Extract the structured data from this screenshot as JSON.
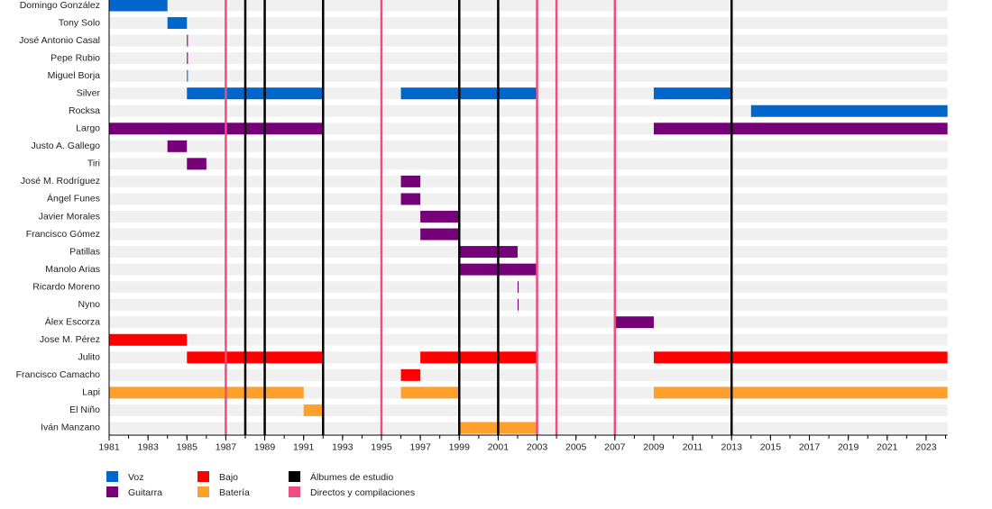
{
  "chart_data": {
    "type": "timeline",
    "title": "",
    "x_range": [
      1981,
      2024.1
    ],
    "x_ticks": [
      1981,
      1983,
      1985,
      1987,
      1989,
      1991,
      1993,
      1995,
      1997,
      1999,
      2001,
      2003,
      2005,
      2007,
      2009,
      2011,
      2013,
      2015,
      2017,
      2019,
      2021,
      2023
    ],
    "roles": {
      "voz": {
        "label": "Voz",
        "color": "#0066cc"
      },
      "guitarra": {
        "label": "Guitarra",
        "color": "#760077"
      },
      "bajo": {
        "label": "Bajo",
        "color": "#ff0000"
      },
      "bateria": {
        "label": "Batería",
        "color": "#ffa02c"
      }
    },
    "event_types": {
      "studio": {
        "label": "Álbumes de estudio",
        "color": "#000000"
      },
      "live": {
        "label": "Directos y compilaciones",
        "color": "#ee4d80"
      }
    },
    "events": {
      "studio": [
        1988,
        1989,
        1992,
        1999,
        2001,
        2013
      ],
      "live": [
        1987,
        1995,
        2003,
        2004,
        2007
      ]
    },
    "members": [
      {
        "name": "Domingo González",
        "role": "voz",
        "periods": [
          [
            1981,
            1984
          ]
        ]
      },
      {
        "name": "Tony Solo",
        "role": "voz",
        "periods": [
          [
            1984,
            1985
          ]
        ]
      },
      {
        "name": "José Antonio Casal",
        "role": "guitarra",
        "periods": [
          [
            1985,
            1985.05
          ]
        ]
      },
      {
        "name": "Pepe Rubio",
        "role": "guitarra",
        "periods": [
          [
            1985,
            1985.05
          ]
        ]
      },
      {
        "name": "Miguel Borja",
        "role": "voz",
        "periods": [
          [
            1985,
            1985.05
          ]
        ]
      },
      {
        "name": "Silver",
        "role": "voz",
        "periods": [
          [
            1985,
            1992
          ],
          [
            1996,
            2003
          ],
          [
            2007,
            2007.05
          ],
          [
            2009,
            2013
          ]
        ]
      },
      {
        "name": "Rocksa",
        "role": "voz",
        "periods": [
          [
            2014,
            2024.1
          ]
        ]
      },
      {
        "name": "Largo",
        "role": "guitarra",
        "periods": [
          [
            1981,
            1992
          ],
          [
            2009,
            2024.1
          ]
        ]
      },
      {
        "name": "Justo A. Gallego",
        "role": "guitarra",
        "periods": [
          [
            1984,
            1985
          ]
        ]
      },
      {
        "name": "Tiri",
        "role": "guitarra",
        "periods": [
          [
            1985,
            1986
          ]
        ]
      },
      {
        "name": "José M. Rodríguez",
        "role": "guitarra",
        "periods": [
          [
            1996,
            1997
          ]
        ]
      },
      {
        "name": "Ángel Funes",
        "role": "guitarra",
        "periods": [
          [
            1996,
            1997
          ]
        ]
      },
      {
        "name": "Javier Morales",
        "role": "guitarra",
        "periods": [
          [
            1997,
            1999
          ]
        ]
      },
      {
        "name": "Francisco Gómez",
        "role": "guitarra",
        "periods": [
          [
            1997,
            1999
          ]
        ]
      },
      {
        "name": "Patillas",
        "role": "guitarra",
        "periods": [
          [
            1999,
            2002
          ]
        ]
      },
      {
        "name": "Manolo Arias",
        "role": "guitarra",
        "periods": [
          [
            1999,
            2003
          ]
        ]
      },
      {
        "name": "Ricardo Moreno",
        "role": "guitarra",
        "periods": [
          [
            2002,
            2002.05
          ]
        ]
      },
      {
        "name": "Nyno",
        "role": "guitarra",
        "periods": [
          [
            2002,
            2002.05
          ]
        ]
      },
      {
        "name": "Álex Escorza",
        "role": "guitarra",
        "periods": [
          [
            2007,
            2009
          ]
        ]
      },
      {
        "name": "Jose M. Pérez",
        "role": "bajo",
        "periods": [
          [
            1981,
            1985
          ]
        ]
      },
      {
        "name": "Julito",
        "role": "bajo",
        "periods": [
          [
            1985,
            1992
          ],
          [
            1997,
            2003
          ],
          [
            2007,
            2007.05
          ],
          [
            2009,
            2024.1
          ]
        ]
      },
      {
        "name": "Francisco Camacho",
        "role": "bajo",
        "periods": [
          [
            1996,
            1997
          ]
        ]
      },
      {
        "name": "Lapi",
        "role": "bateria",
        "periods": [
          [
            1981,
            1991
          ],
          [
            1996,
            1999
          ],
          [
            2007,
            2007.05
          ],
          [
            2009,
            2024.1
          ]
        ]
      },
      {
        "name": "El Niño",
        "role": "bateria",
        "periods": [
          [
            1991,
            1992
          ]
        ]
      },
      {
        "name": "Iván Manzano",
        "role": "bateria",
        "periods": [
          [
            1999,
            2003
          ]
        ]
      }
    ],
    "legend": {
      "placement": "bottom-left",
      "order": [
        "voz",
        "guitarra",
        "bajo",
        "bateria",
        "studio",
        "live"
      ]
    }
  }
}
